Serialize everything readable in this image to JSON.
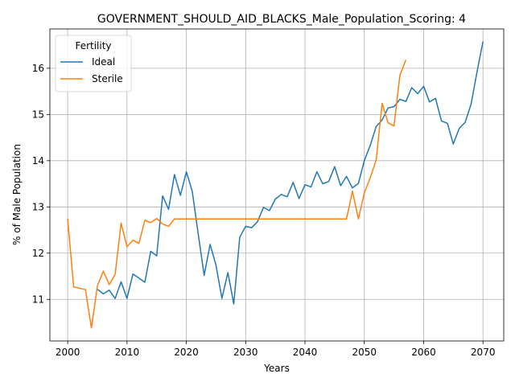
{
  "chart_data": {
    "type": "line",
    "title": "GOVERNMENT_SHOULD_AID_BLACKS_Male_Population_Scoring: 4",
    "xlabel": "Years",
    "ylabel": "% of Male Population",
    "xlim": [
      1997,
      2073.5
    ],
    "ylim": [
      10.1,
      16.85
    ],
    "x_ticks": [
      2000,
      2010,
      2020,
      2030,
      2040,
      2050,
      2060,
      2070
    ],
    "y_ticks": [
      11,
      12,
      13,
      14,
      15,
      16
    ],
    "grid": true,
    "legend": {
      "title": "Fertility",
      "placement": "top-left"
    },
    "series": [
      {
        "name": "Ideal",
        "color": "#1f77b4",
        "x": [
          2005,
          2006,
          2007,
          2008,
          2009,
          2010,
          2011,
          2012,
          2013,
          2014,
          2015,
          2016,
          2017,
          2018,
          2019,
          2020,
          2021,
          2022,
          2023,
          2024,
          2025,
          2026,
          2027,
          2028,
          2029,
          2030,
          2031,
          2032,
          2033,
          2034,
          2035,
          2036,
          2037,
          2038,
          2039,
          2040,
          2041,
          2042,
          2043,
          2044,
          2045,
          2046,
          2047,
          2048,
          2049,
          2050,
          2051,
          2052,
          2053,
          2054,
          2055,
          2056,
          2057,
          2058,
          2059,
          2060,
          2061,
          2062,
          2063,
          2064,
          2065,
          2066,
          2067,
          2068,
          2069,
          2070
        ],
        "values": [
          11.22,
          11.12,
          11.2,
          11.02,
          11.38,
          11.02,
          11.55,
          11.46,
          11.37,
          12.04,
          11.94,
          13.24,
          12.95,
          13.7,
          13.25,
          13.76,
          13.34,
          12.42,
          11.52,
          12.19,
          11.74,
          11.02,
          11.58,
          10.9,
          12.34,
          12.58,
          12.55,
          12.68,
          12.99,
          12.92,
          13.17,
          13.27,
          13.22,
          13.53,
          13.18,
          13.48,
          13.43,
          13.76,
          13.5,
          13.55,
          13.87,
          13.46,
          13.66,
          13.41,
          13.51,
          14.0,
          14.33,
          14.74,
          14.88,
          15.14,
          15.17,
          15.33,
          15.28,
          15.58,
          15.45,
          15.61,
          15.27,
          15.35,
          14.86,
          14.81,
          14.36,
          14.7,
          14.83,
          15.23,
          15.92,
          16.58
        ]
      },
      {
        "name": "Sterile",
        "color": "#ff7f0e",
        "x": [
          2000,
          2001,
          2003,
          2004,
          2005,
          2006,
          2007,
          2008,
          2009,
          2010,
          2011,
          2012,
          2013,
          2014,
          2015,
          2016,
          2017,
          2018,
          2019,
          2020,
          2021,
          2022,
          2023,
          2024,
          2025,
          2026,
          2027,
          2028,
          2029,
          2030,
          2031,
          2032,
          2033,
          2034,
          2035,
          2036,
          2037,
          2038,
          2039,
          2040,
          2041,
          2042,
          2043,
          2044,
          2045,
          2046,
          2047,
          2048,
          2049,
          2050,
          2051,
          2052,
          2053,
          2054,
          2055,
          2056,
          2057
        ],
        "values": [
          12.74,
          11.27,
          11.21,
          10.38,
          11.29,
          11.61,
          11.32,
          11.54,
          12.65,
          12.14,
          12.28,
          12.21,
          12.71,
          12.66,
          12.75,
          12.63,
          12.58,
          12.74,
          12.74,
          12.74,
          12.74,
          12.74,
          12.74,
          12.74,
          12.74,
          12.74,
          12.74,
          12.74,
          12.74,
          12.74,
          12.74,
          12.74,
          12.74,
          12.74,
          12.74,
          12.74,
          12.74,
          12.74,
          12.74,
          12.74,
          12.74,
          12.74,
          12.74,
          12.74,
          12.74,
          12.74,
          12.74,
          13.34,
          12.74,
          13.3,
          13.63,
          14.02,
          15.24,
          14.82,
          14.75,
          15.85,
          16.18
        ]
      }
    ]
  }
}
